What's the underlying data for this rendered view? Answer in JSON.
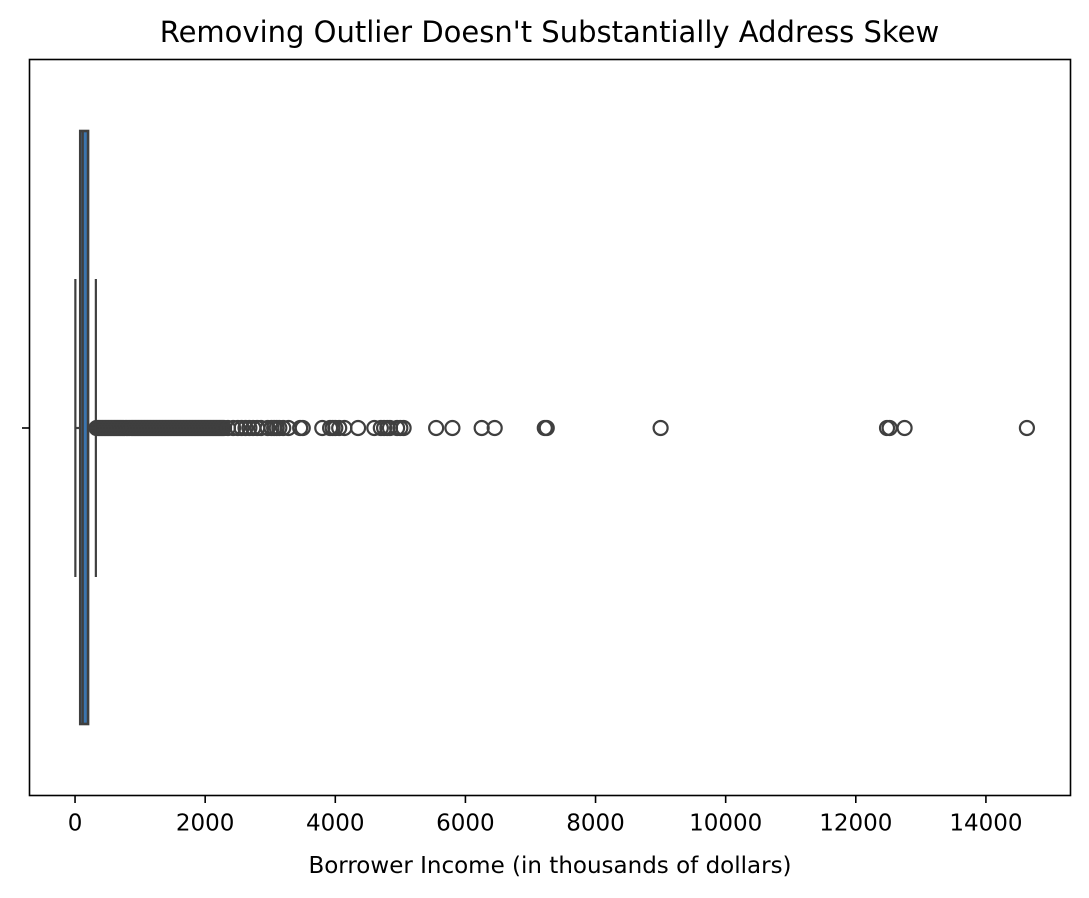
{
  "chart_data": {
    "type": "box",
    "title": "Removing Outlier Doesn't Substantially Address Skew",
    "xlabel": "Borrower Income (in thousands of dollars)",
    "ylabel": "",
    "xlim": [
      -700,
      15300
    ],
    "xticks": [
      0,
      2000,
      4000,
      6000,
      8000,
      10000,
      12000,
      14000
    ],
    "xtick_labels": [
      "0",
      "2000",
      "4000",
      "6000",
      "8000",
      "10000",
      "12000",
      "14000"
    ],
    "grid": false,
    "box": {
      "whisker_low": 5,
      "q1": 80,
      "median": 120,
      "q3": 200,
      "whisker_high": 320,
      "fill_color": "#3b75af",
      "line_color": "#3f3f3f"
    },
    "outliers_dense_range": [
      330,
      2300
    ],
    "outliers": [
      2350,
      2430,
      2500,
      2560,
      2620,
      2680,
      2740,
      2800,
      2860,
      2960,
      3020,
      3060,
      3100,
      3140,
      3200,
      3280,
      3460,
      3500,
      3800,
      3920,
      3960,
      4000,
      4060,
      4140,
      4350,
      4600,
      4700,
      4750,
      4800,
      4840,
      4950,
      5000,
      5050,
      5550,
      5800,
      6250,
      6450,
      7220,
      7250,
      9000,
      12480,
      12520,
      12750,
      14630
    ]
  }
}
